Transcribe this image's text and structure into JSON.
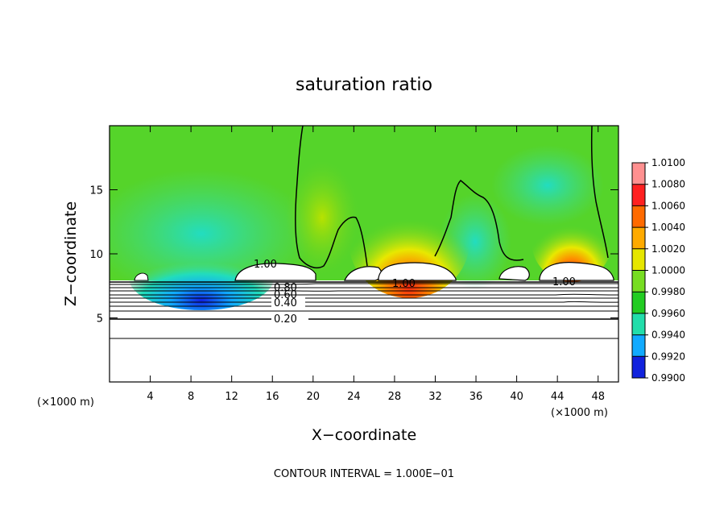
{
  "chart_data": {
    "type": "heatmap",
    "title": "saturation ratio",
    "xlabel": "X−coordinate",
    "ylabel": "Z−coordinate",
    "x_unit": "(×1000 m)",
    "x_unit_right": "(×1000 m)",
    "xlim": [
      0,
      50
    ],
    "ylim": [
      0,
      20
    ],
    "x_ticks": [
      4,
      8,
      12,
      16,
      20,
      24,
      28,
      32,
      36,
      40,
      44,
      48
    ],
    "y_ticks": [
      5,
      10,
      15
    ],
    "colorbar": {
      "levels": [
        "1.0100",
        "1.0080",
        "1.0060",
        "1.0040",
        "1.0020",
        "1.0000",
        "0.9980",
        "0.9960",
        "0.9940",
        "0.9920",
        "0.9900"
      ],
      "colors": [
        "#ff9090",
        "#ff2020",
        "#ff6a00",
        "#ffaa00",
        "#e6e600",
        "#77dd22",
        "#22cc22",
        "#22ddaa",
        "#11aaff",
        "#1122dd",
        "#2200aa",
        "#550088"
      ]
    },
    "contour_lines": [
      0.2,
      0.4,
      0.6,
      0.8,
      1.0
    ],
    "contour_labels": [
      "0.20",
      "0.40",
      "0.60",
      "0.80",
      "1.00",
      "1.00",
      "1.00"
    ],
    "footer": "CONTOUR INTERVAL = 1.000E−01"
  }
}
